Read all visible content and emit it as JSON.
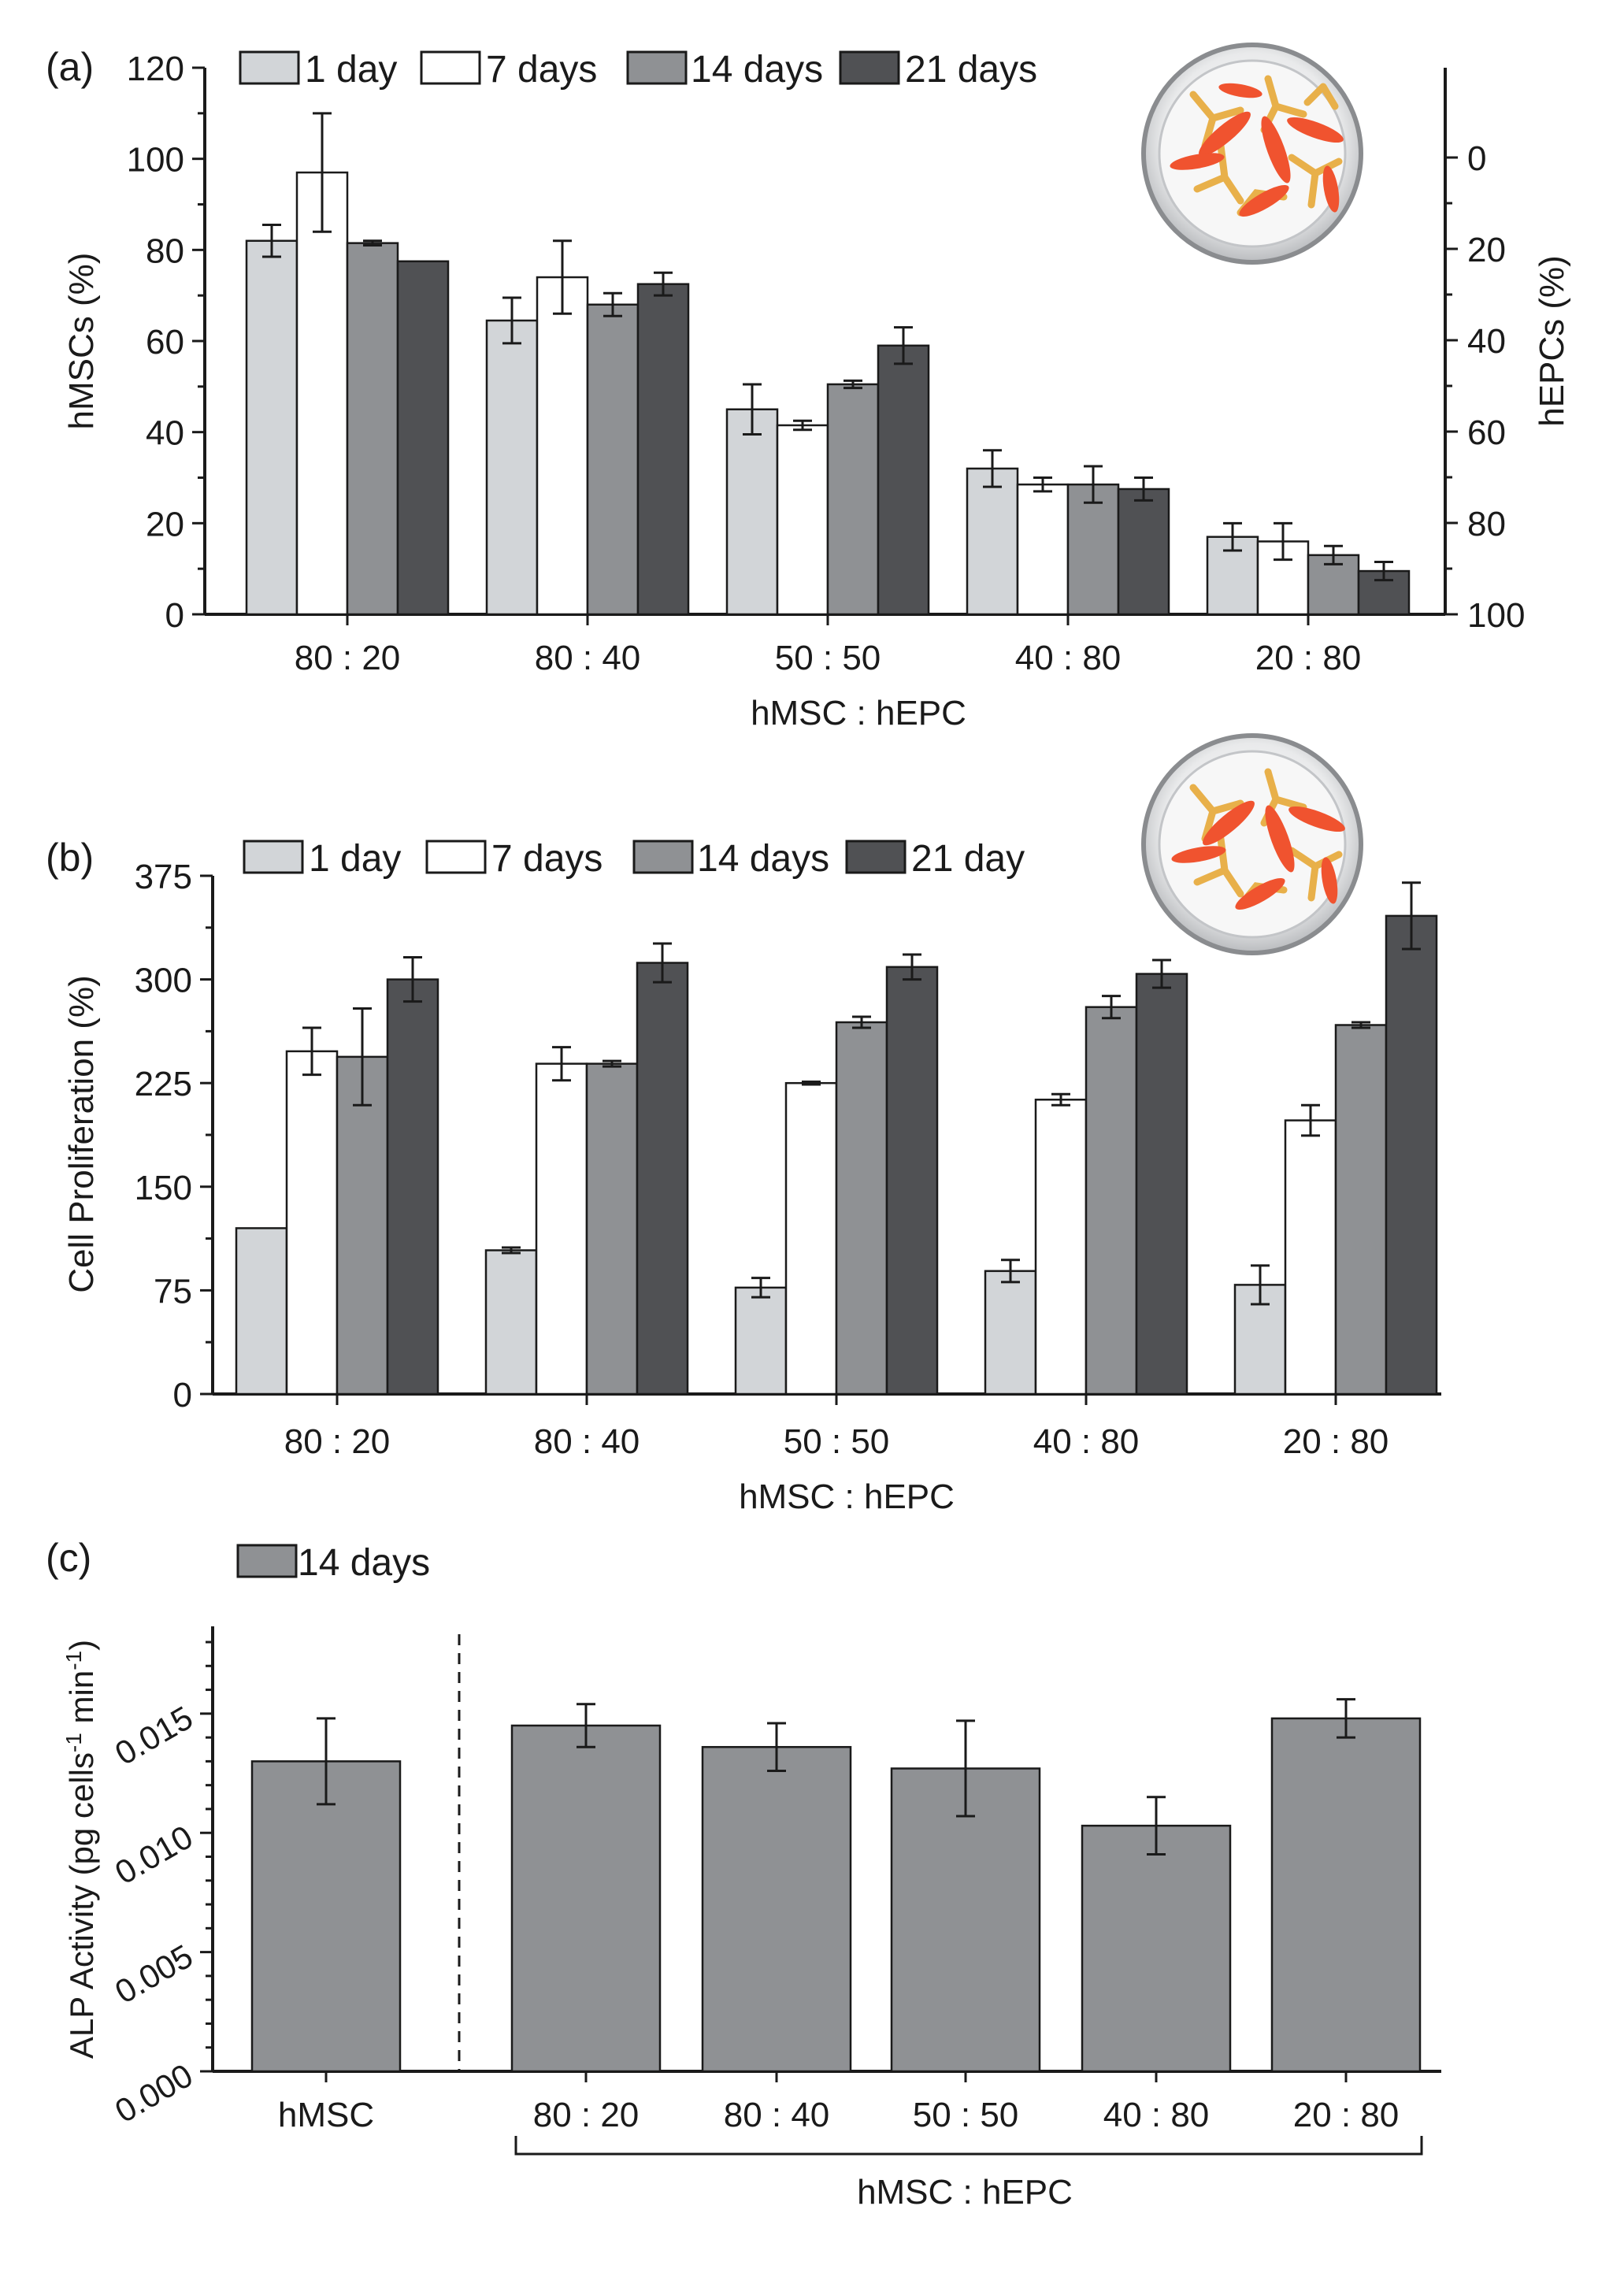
{
  "colors": {
    "day1": "#d2d5d8",
    "day7": "#ffffff",
    "day14": "#8f9194",
    "day21": "#505154",
    "stroke": "#1a1a1a"
  },
  "chart_data": [
    {
      "panel": "(a)",
      "type": "bar",
      "categories": [
        "80 : 20",
        "80 : 40",
        "50 : 50",
        "40 : 80",
        "20 : 80"
      ],
      "series": [
        {
          "name": "1 day",
          "color_key": "day1",
          "values": [
            82,
            64.5,
            45,
            32,
            17
          ],
          "errors": [
            3.5,
            5,
            5.5,
            4,
            3
          ]
        },
        {
          "name": "7 days",
          "color_key": "day7",
          "values": [
            97,
            74,
            41.5,
            28.5,
            16
          ],
          "errors": [
            13,
            8,
            1,
            1.5,
            4
          ]
        },
        {
          "name": "14 days",
          "color_key": "day14",
          "values": [
            81.5,
            68,
            50.5,
            28.5,
            13
          ],
          "errors": [
            0.5,
            2.5,
            0.8,
            4,
            2
          ]
        },
        {
          "name": "21 days",
          "color_key": "day21",
          "values": [
            77.5,
            72.5,
            59,
            27.5,
            9.5
          ],
          "errors": [
            0,
            2.5,
            4,
            2.5,
            2
          ]
        }
      ],
      "xlabel": "hMSC : hEPC",
      "ylabel": "hMSCs (%)",
      "ylim": [
        0,
        120
      ],
      "yticks": [
        "0",
        "20",
        "40",
        "60",
        "80",
        "100",
        "120"
      ],
      "y2label": "hEPCs (%)",
      "y2ticks": [
        "100",
        "80",
        "60",
        "40",
        "20",
        "0"
      ],
      "legend": [
        "1 day",
        "7 days",
        "14 days",
        "21 days"
      ],
      "legend_position": "top-left",
      "inset": "petri-dish-illustration"
    },
    {
      "panel": "(b)",
      "type": "bar",
      "categories": [
        "80 : 20",
        "80 : 40",
        "50 : 50",
        "40 : 80",
        "20 : 80"
      ],
      "series": [
        {
          "name": "1 day",
          "color_key": "day1",
          "values": [
            120,
            104,
            77,
            89,
            79
          ],
          "errors": [
            0,
            2,
            7,
            8,
            14
          ]
        },
        {
          "name": "7 days",
          "color_key": "day7",
          "values": [
            248,
            239,
            225,
            213,
            198
          ],
          "errors": [
            17,
            12,
            1,
            4,
            11
          ]
        },
        {
          "name": "14 days",
          "color_key": "day14",
          "values": [
            244,
            239,
            269,
            280,
            267
          ],
          "errors": [
            35,
            2,
            4,
            8,
            2
          ]
        },
        {
          "name": "21 days",
          "color_key": "day21",
          "values": [
            300,
            312,
            309,
            304,
            346
          ],
          "errors": [
            16,
            14,
            9,
            10,
            24
          ]
        }
      ],
      "xlabel": "hMSC : hEPC",
      "ylabel": "Cell Proliferation (%)",
      "ylim": [
        0,
        375
      ],
      "yticks": [
        "0",
        "75",
        "150",
        "225",
        "300",
        "375"
      ],
      "legend": [
        "1 day",
        "7 days",
        "14 days",
        "21 day"
      ],
      "legend_position": "top-left",
      "inset": "petri-dish-illustration"
    },
    {
      "panel": "(c)",
      "type": "bar",
      "categories": [
        "hMSC",
        "80 : 20",
        "80 : 40",
        "50 : 50",
        "40 : 80",
        "20 : 80"
      ],
      "series": [
        {
          "name": "14 days",
          "color_key": "day14",
          "values": [
            0.013,
            0.0145,
            0.0136,
            0.0127,
            0.0103,
            0.0148
          ],
          "errors": [
            0.0018,
            0.0009,
            0.001,
            0.002,
            0.0012,
            0.0008
          ]
        }
      ],
      "xlabel": "hMSC : hEPC",
      "ylabel": "ALP Activity (pg cells-1 min-1)",
      "ylim": [
        0,
        0.018
      ],
      "yticks": [
        "0.000",
        "0.005",
        "0.010",
        "0.015"
      ],
      "legend": [
        "14 days"
      ],
      "legend_position": "top-left",
      "separator_after_category": "hMSC"
    }
  ]
}
